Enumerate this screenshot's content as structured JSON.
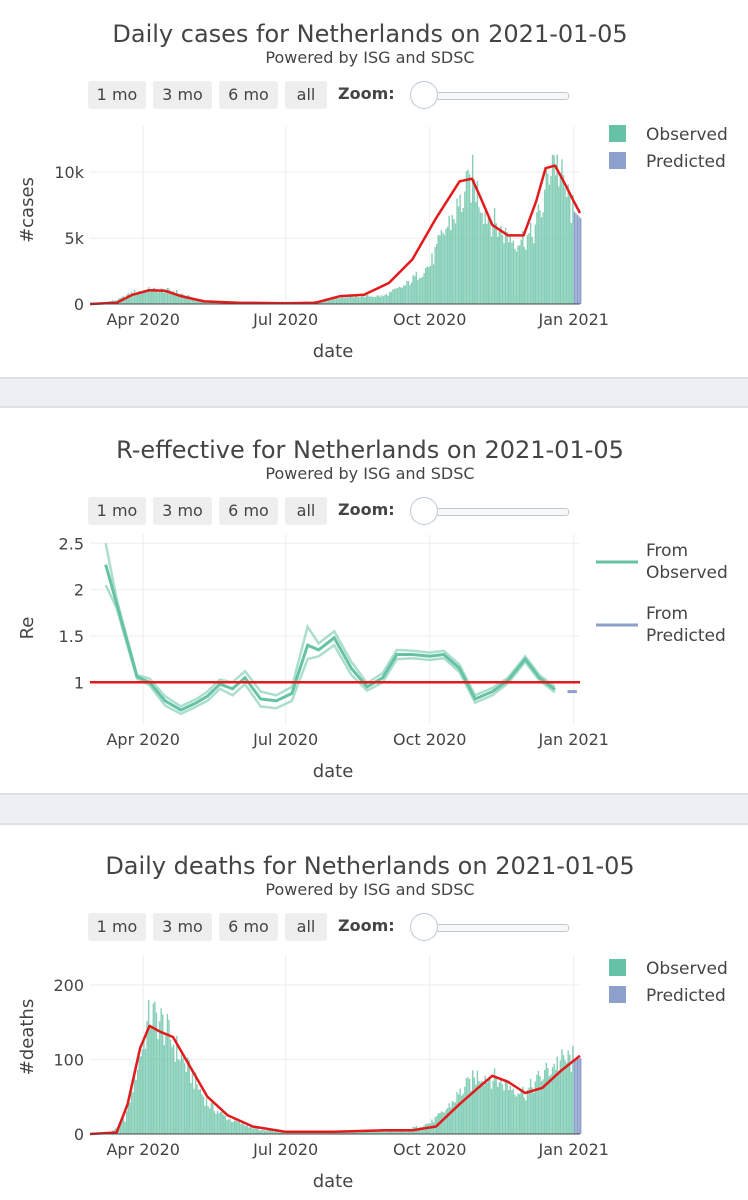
{
  "controls": {
    "buttons": [
      "1 mo",
      "3 mo",
      "6 mo",
      "all"
    ],
    "zoom_label": "Zoom:"
  },
  "colors": {
    "observed": "#66c2a5",
    "predicted": "#8da0cb",
    "fit_line": "#e31a1c",
    "grid": "#eeeeee"
  },
  "chart_data": [
    {
      "type": "bar",
      "title": "Daily cases for Netherlands on 2021-01-05",
      "subtitle": "Powered by ISG and SDSC",
      "xlabel": "date",
      "ylabel": "#cases",
      "x_ticks": [
        "Apr 2020",
        "Jul 2020",
        "Oct 2020",
        "Jan 2021"
      ],
      "y_ticks": [
        "0",
        "5k",
        "10k"
      ],
      "ylim": [
        0,
        13500
      ],
      "legend": [
        "Observed",
        "Predicted"
      ],
      "series": [
        {
          "name": "Observed",
          "x": [
            "2020-02-27",
            "2020-03-15",
            "2020-03-25",
            "2020-04-05",
            "2020-04-20",
            "2020-05-05",
            "2020-05-20",
            "2020-06-15",
            "2020-07-15",
            "2020-08-01",
            "2020-08-15",
            "2020-09-01",
            "2020-09-15",
            "2020-10-01",
            "2020-10-10",
            "2020-10-20",
            "2020-10-28",
            "2020-11-05",
            "2020-11-15",
            "2020-11-25",
            "2020-12-05",
            "2020-12-12",
            "2020-12-18",
            "2020-12-25",
            "2020-12-31"
          ],
          "values": [
            0,
            300,
            900,
            1100,
            1000,
            300,
            200,
            100,
            100,
            500,
            600,
            600,
            1400,
            3000,
            5500,
            7500,
            9500,
            7000,
            5500,
            4800,
            5200,
            7500,
            11500,
            9000,
            7000
          ]
        },
        {
          "name": "Predicted",
          "x": [
            "2021-01-01",
            "2021-01-05"
          ],
          "values": [
            7000,
            6500
          ]
        }
      ],
      "fit": {
        "x": [
          "2020-02-27",
          "2020-03-15",
          "2020-03-25",
          "2020-04-05",
          "2020-04-15",
          "2020-04-25",
          "2020-05-10",
          "2020-06-01",
          "2020-07-01",
          "2020-07-20",
          "2020-08-05",
          "2020-08-20",
          "2020-09-05",
          "2020-09-20",
          "2020-10-05",
          "2020-10-20",
          "2020-10-28",
          "2020-11-02",
          "2020-11-10",
          "2020-11-20",
          "2020-11-30",
          "2020-12-08",
          "2020-12-14",
          "2020-12-20",
          "2020-12-26",
          "2021-01-01",
          "2021-01-05"
        ],
        "values": [
          0,
          100,
          700,
          1050,
          1000,
          600,
          200,
          100,
          50,
          100,
          600,
          700,
          1600,
          3400,
          6500,
          9300,
          9500,
          8200,
          6000,
          5200,
          5200,
          7800,
          10300,
          10500,
          9200,
          7800,
          6900
        ]
      }
    },
    {
      "type": "line",
      "title": "R-effective for Netherlands on 2021-01-05",
      "subtitle": "Powered by ISG and SDSC",
      "xlabel": "date",
      "ylabel": "Re",
      "x_ticks": [
        "Apr 2020",
        "Jul 2020",
        "Oct 2020",
        "Jan 2021"
      ],
      "y_ticks": [
        "1",
        "1.5",
        "2",
        "2.5"
      ],
      "ylim": [
        0.55,
        2.6
      ],
      "legend": [
        "From Observed",
        "From Predicted"
      ],
      "reference_line": 1,
      "series": [
        {
          "name": "From Observed",
          "x": [
            "2020-03-08",
            "2020-03-15",
            "2020-03-28",
            "2020-04-05",
            "2020-04-15",
            "2020-04-25",
            "2020-05-05",
            "2020-05-12",
            "2020-05-20",
            "2020-05-28",
            "2020-06-05",
            "2020-06-15",
            "2020-06-25",
            "2020-07-05",
            "2020-07-15",
            "2020-07-22",
            "2020-08-01",
            "2020-08-12",
            "2020-08-22",
            "2020-09-01",
            "2020-09-10",
            "2020-09-20",
            "2020-10-01",
            "2020-10-10",
            "2020-10-20",
            "2020-10-30",
            "2020-11-10",
            "2020-11-20",
            "2020-12-01",
            "2020-12-10",
            "2020-12-20"
          ],
          "values": [
            2.27,
            1.85,
            1.06,
            1.0,
            0.8,
            0.7,
            0.78,
            0.85,
            0.98,
            0.93,
            1.05,
            0.82,
            0.8,
            0.88,
            1.4,
            1.35,
            1.48,
            1.15,
            0.95,
            1.05,
            1.3,
            1.3,
            1.28,
            1.3,
            1.15,
            0.82,
            0.9,
            1.02,
            1.25,
            1.05,
            0.92
          ],
          "upper": [
            2.5,
            1.9,
            1.08,
            1.04,
            0.85,
            0.74,
            0.82,
            0.9,
            1.03,
            1.0,
            1.12,
            0.9,
            0.86,
            0.95,
            1.6,
            1.42,
            1.55,
            1.22,
            0.99,
            1.1,
            1.35,
            1.34,
            1.32,
            1.34,
            1.19,
            0.86,
            0.94,
            1.05,
            1.28,
            1.08,
            0.95
          ],
          "lower": [
            2.05,
            1.8,
            1.04,
            0.97,
            0.75,
            0.66,
            0.74,
            0.8,
            0.93,
            0.86,
            0.98,
            0.74,
            0.72,
            0.8,
            1.25,
            1.28,
            1.4,
            1.08,
            0.91,
            1.0,
            1.25,
            1.26,
            1.24,
            1.26,
            1.11,
            0.78,
            0.86,
            0.99,
            1.22,
            1.02,
            0.89
          ]
        },
        {
          "name": "From Predicted",
          "x": [
            "2020-12-28",
            "2021-01-03"
          ],
          "values": [
            0.9,
            0.9
          ]
        }
      ]
    },
    {
      "type": "bar",
      "title": "Daily deaths for Netherlands on 2021-01-05",
      "subtitle": "Powered by ISG and SDSC",
      "xlabel": "date",
      "ylabel": "#deaths",
      "x_ticks": [
        "Apr 2020",
        "Jul 2020",
        "Oct 2020",
        "Jan 2021"
      ],
      "y_ticks": [
        "0",
        "100",
        "200"
      ],
      "ylim": [
        0,
        240
      ],
      "legend": [
        "Observed",
        "Predicted"
      ],
      "series": [
        {
          "name": "Observed",
          "x": [
            "2020-03-10",
            "2020-03-20",
            "2020-03-30",
            "2020-04-05",
            "2020-04-12",
            "2020-04-20",
            "2020-05-01",
            "2020-05-12",
            "2020-05-25",
            "2020-06-15",
            "2020-07-15",
            "2020-08-15",
            "2020-09-15",
            "2020-10-01",
            "2020-10-10",
            "2020-10-20",
            "2020-11-01",
            "2020-11-10",
            "2020-11-20",
            "2020-12-01",
            "2020-12-10",
            "2020-12-20",
            "2020-12-31"
          ],
          "values": [
            0,
            20,
            110,
            160,
            150,
            120,
            80,
            40,
            20,
            5,
            2,
            3,
            5,
            15,
            30,
            55,
            80,
            75,
            65,
            55,
            75,
            95,
            100
          ]
        },
        {
          "name": "Predicted",
          "x": [
            "2021-01-01",
            "2021-01-05"
          ],
          "values": [
            100,
            102
          ]
        }
      ],
      "fit": {
        "x": [
          "2020-02-27",
          "2020-03-15",
          "2020-03-22",
          "2020-03-30",
          "2020-04-05",
          "2020-04-12",
          "2020-04-20",
          "2020-05-01",
          "2020-05-12",
          "2020-05-25",
          "2020-06-10",
          "2020-07-01",
          "2020-08-01",
          "2020-09-01",
          "2020-09-20",
          "2020-10-05",
          "2020-10-20",
          "2020-11-01",
          "2020-11-10",
          "2020-11-20",
          "2020-12-01",
          "2020-12-12",
          "2020-12-24",
          "2021-01-05"
        ],
        "values": [
          0,
          2,
          40,
          115,
          145,
          137,
          130,
          90,
          50,
          25,
          10,
          3,
          3,
          5,
          5,
          10,
          40,
          62,
          78,
          70,
          55,
          62,
          85,
          105
        ]
      }
    }
  ]
}
